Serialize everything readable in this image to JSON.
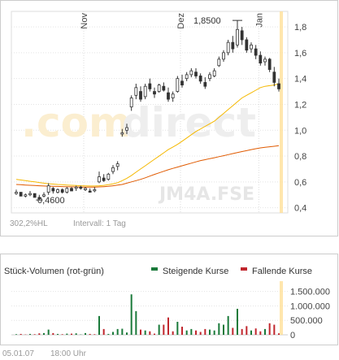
{
  "watermark": {
    "brand_dot": ".com",
    "brand_word": "direct",
    "symbol": "JM4A.FSE"
  },
  "price_chart": {
    "months": [
      "Nov",
      "Dez",
      "Jan"
    ],
    "y_ticks": [
      "1,8",
      "1,6",
      "1,4",
      "1,2",
      "1,0",
      "0,8",
      "0,6",
      "0,4"
    ],
    "high_label": "1,8500",
    "low_label": "0,4600",
    "footer_range": "302,2%HL",
    "footer_interval": "Intervall: 1 Tag",
    "colors": {
      "ma_fast": "#f5b800",
      "ma_slow": "#e05a00",
      "candle": "#333333",
      "highlight": "#ffe099"
    }
  },
  "volume_chart": {
    "title": "Stück-Volumen (rot-grün)",
    "legend_up": "Steigende Kurse",
    "legend_down": "Fallende Kurse",
    "y_ticks": [
      "1.500.000",
      "1.000.000",
      "500.000",
      "0"
    ],
    "colors": {
      "up": "#1a7a3a",
      "down": "#c0262d"
    }
  },
  "footer": {
    "date": "05.01.07",
    "time": "18:00 Uhr"
  },
  "chart_data": [
    {
      "type": "candlestick",
      "title": "",
      "x_labels": [
        "Nov",
        "Dez",
        "Jan"
      ],
      "ylim": [
        0.36,
        1.92
      ],
      "y_ticks": [
        1.8,
        1.6,
        1.4,
        1.2,
        1.0,
        0.8,
        0.6,
        0.4
      ],
      "annotations": [
        {
          "text": "1,8500",
          "value": 1.85
        },
        {
          "text": "0,4600",
          "value": 0.46
        }
      ],
      "candles": [
        [
          0.51,
          0.54,
          0.5,
          0.52
        ],
        [
          0.52,
          0.52,
          0.49,
          0.49
        ],
        [
          0.49,
          0.51,
          0.48,
          0.5
        ],
        [
          0.5,
          0.53,
          0.49,
          0.51
        ],
        [
          0.51,
          0.51,
          0.48,
          0.48
        ],
        [
          0.48,
          0.5,
          0.46,
          0.47
        ],
        [
          0.49,
          0.52,
          0.48,
          0.5
        ],
        [
          0.52,
          0.59,
          0.5,
          0.57
        ],
        [
          0.55,
          0.56,
          0.51,
          0.53
        ],
        [
          0.52,
          0.55,
          0.51,
          0.54
        ],
        [
          0.54,
          0.55,
          0.51,
          0.52
        ],
        [
          0.52,
          0.56,
          0.51,
          0.55
        ],
        [
          0.55,
          0.56,
          0.53,
          0.53
        ],
        [
          0.55,
          0.57,
          0.53,
          0.56
        ],
        [
          0.56,
          0.57,
          0.54,
          0.55
        ],
        [
          0.54,
          0.56,
          0.53,
          0.55
        ],
        [
          0.53,
          0.55,
          0.52,
          0.52
        ],
        [
          0.54,
          0.56,
          0.52,
          0.54
        ],
        [
          0.6,
          0.68,
          0.59,
          0.64
        ],
        [
          0.63,
          0.66,
          0.6,
          0.61
        ],
        [
          0.62,
          0.67,
          0.61,
          0.66
        ],
        [
          0.68,
          0.73,
          0.66,
          0.71
        ],
        [
          0.72,
          0.76,
          0.69,
          0.74
        ],
        [
          0.97,
          1.01,
          0.95,
          0.98
        ],
        [
          1.0,
          1.05,
          0.97,
          1.02
        ],
        [
          1.18,
          1.27,
          1.15,
          1.25
        ],
        [
          1.27,
          1.36,
          1.24,
          1.33
        ],
        [
          1.3,
          1.34,
          1.22,
          1.24
        ],
        [
          1.26,
          1.36,
          1.24,
          1.34
        ],
        [
          1.36,
          1.4,
          1.3,
          1.32
        ],
        [
          1.3,
          1.33,
          1.25,
          1.28
        ],
        [
          1.3,
          1.36,
          1.29,
          1.35
        ],
        [
          1.34,
          1.37,
          1.3,
          1.31
        ],
        [
          1.29,
          1.33,
          1.22,
          1.24
        ],
        [
          1.25,
          1.3,
          1.22,
          1.28
        ],
        [
          1.3,
          1.42,
          1.29,
          1.4
        ],
        [
          1.38,
          1.43,
          1.33,
          1.35
        ],
        [
          1.4,
          1.45,
          1.38,
          1.43
        ],
        [
          1.43,
          1.48,
          1.41,
          1.46
        ],
        [
          1.45,
          1.48,
          1.4,
          1.42
        ],
        [
          1.42,
          1.44,
          1.36,
          1.38
        ],
        [
          1.37,
          1.41,
          1.32,
          1.34
        ],
        [
          1.4,
          1.45,
          1.38,
          1.43
        ],
        [
          1.42,
          1.48,
          1.41,
          1.46
        ],
        [
          1.5,
          1.57,
          1.49,
          1.55
        ],
        [
          1.55,
          1.62,
          1.53,
          1.6
        ],
        [
          1.6,
          1.7,
          1.58,
          1.68
        ],
        [
          1.68,
          1.73,
          1.6,
          1.63
        ],
        [
          1.66,
          1.85,
          1.64,
          1.78
        ],
        [
          1.77,
          1.8,
          1.66,
          1.7
        ],
        [
          1.7,
          1.72,
          1.6,
          1.62
        ],
        [
          1.63,
          1.68,
          1.6,
          1.66
        ],
        [
          1.63,
          1.66,
          1.55,
          1.58
        ],
        [
          1.58,
          1.61,
          1.5,
          1.52
        ],
        [
          1.53,
          1.57,
          1.5,
          1.55
        ],
        [
          1.55,
          1.56,
          1.45,
          1.47
        ],
        [
          1.45,
          1.49,
          1.34,
          1.37
        ],
        [
          1.36,
          1.4,
          1.3,
          1.32
        ]
      ],
      "series": [
        {
          "values": [
            0.62,
            0.615,
            0.61,
            0.605,
            0.6,
            0.595,
            0.59,
            0.586,
            0.583,
            0.58,
            0.578,
            0.576,
            0.574,
            0.572,
            0.57,
            0.569,
            0.568,
            0.568,
            0.57,
            0.573,
            0.578,
            0.585,
            0.594,
            0.61,
            0.628,
            0.65,
            0.675,
            0.7,
            0.725,
            0.75,
            0.775,
            0.8,
            0.825,
            0.85,
            0.87,
            0.89,
            0.915,
            0.94,
            0.965,
            0.99,
            1.01,
            1.03,
            1.05,
            1.07,
            1.1,
            1.13,
            1.16,
            1.19,
            1.22,
            1.25,
            1.27,
            1.29,
            1.31,
            1.33,
            1.34,
            1.345,
            1.35,
            1.36
          ]
        },
        {
          "values": [
            0.58,
            0.578,
            0.576,
            0.574,
            0.572,
            0.57,
            0.568,
            0.567,
            0.566,
            0.565,
            0.564,
            0.563,
            0.562,
            0.561,
            0.56,
            0.56,
            0.56,
            0.56,
            0.561,
            0.563,
            0.566,
            0.57,
            0.575,
            0.58,
            0.59,
            0.6,
            0.61,
            0.62,
            0.632,
            0.645,
            0.658,
            0.67,
            0.682,
            0.694,
            0.705,
            0.715,
            0.725,
            0.735,
            0.745,
            0.755,
            0.765,
            0.772,
            0.78,
            0.787,
            0.795,
            0.803,
            0.811,
            0.819,
            0.827,
            0.835,
            0.842,
            0.85,
            0.857,
            0.863,
            0.868,
            0.872,
            0.876,
            0.88
          ]
        }
      ]
    },
    {
      "type": "bar",
      "title": "Stück-Volumen (rot-grün)",
      "ylim": [
        0,
        1800000
      ],
      "y_ticks": [
        1500000,
        1000000,
        500000,
        0
      ],
      "series": [
        {
          "name": "Steigende Kurse",
          "values": [
            20000,
            0,
            0,
            30000,
            0,
            0,
            60000,
            180000,
            0,
            30000,
            0,
            40000,
            0,
            50000,
            10000,
            60000,
            0,
            0,
            650000,
            0,
            30000,
            100000,
            200000,
            210000,
            80000,
            1400000,
            820000,
            0,
            150000,
            0,
            0,
            350000,
            0,
            0,
            0,
            450000,
            0,
            150000,
            200000,
            0,
            0,
            0,
            180000,
            150000,
            400000,
            350000,
            650000,
            0,
            900000,
            0,
            0,
            150000,
            0,
            0,
            200000,
            0,
            0,
            0
          ]
        },
        {
          "name": "Fallende Kurse",
          "values": [
            0,
            30000,
            10000,
            0,
            20000,
            50000,
            0,
            0,
            60000,
            0,
            20000,
            0,
            40000,
            0,
            0,
            0,
            30000,
            20000,
            0,
            200000,
            0,
            0,
            0,
            0,
            0,
            0,
            0,
            180000,
            0,
            120000,
            40000,
            0,
            350000,
            600000,
            120000,
            0,
            280000,
            0,
            0,
            150000,
            100000,
            200000,
            0,
            0,
            0,
            0,
            0,
            240000,
            0,
            200000,
            300000,
            0,
            220000,
            120000,
            0,
            400000,
            350000,
            50000
          ]
        }
      ]
    }
  ]
}
